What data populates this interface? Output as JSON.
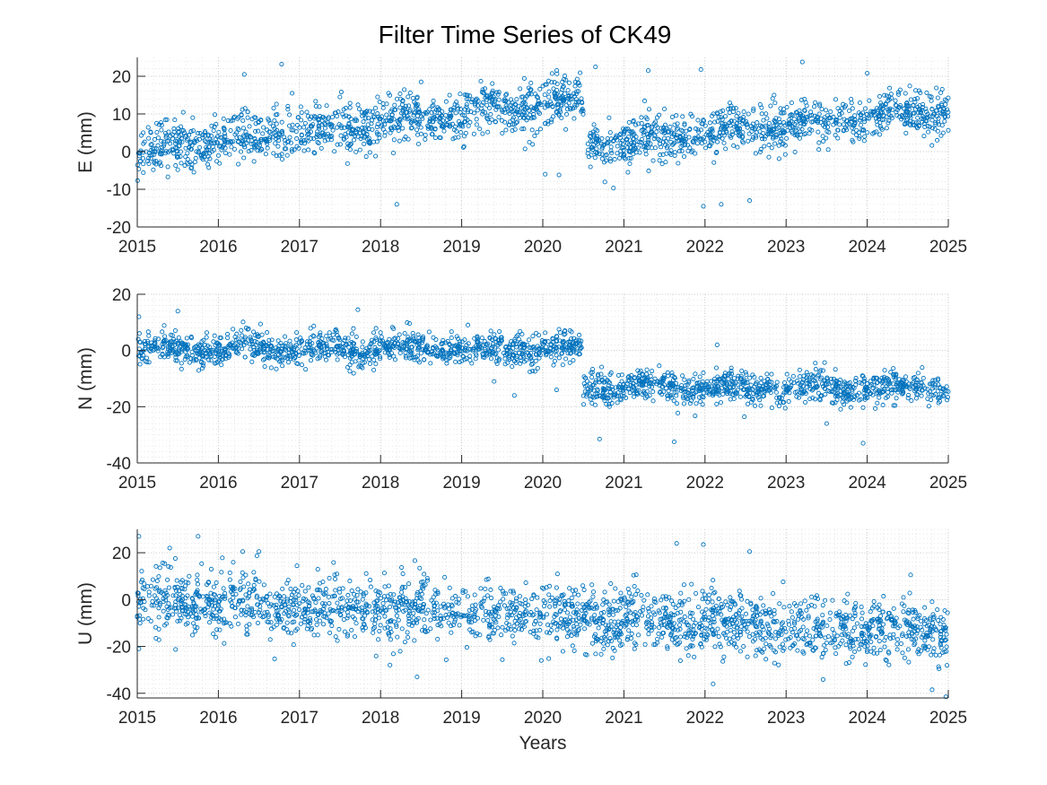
{
  "figure": {
    "title": "Filter Time Series of CK49",
    "marker_color": "#0072BD"
  },
  "chart_data": [
    {
      "type": "scatter",
      "ylabel": "E (mm)",
      "xlabel": "",
      "xlim": [
        2015,
        2025
      ],
      "ylim": [
        -20,
        25
      ],
      "xticks": [
        2015,
        2016,
        2017,
        2018,
        2019,
        2020,
        2021,
        2022,
        2023,
        2024,
        2025
      ],
      "yticks": [
        -20,
        -10,
        0,
        10,
        20
      ],
      "grid": true,
      "minor_grid": true,
      "segments": [
        {
          "x": [
            2015.0,
            2020.5
          ],
          "y_start": 0.5,
          "y_end": 13.5,
          "scatter_sd": 3.2
        },
        {
          "x": [
            2020.55,
            2025.0
          ],
          "y_start": 1.5,
          "y_end": 11.5,
          "scatter_sd": 3.0
        }
      ],
      "outliers": [
        {
          "x": 2016.32,
          "y": 20.5
        },
        {
          "x": 2016.78,
          "y": 23.2
        },
        {
          "x": 2018.2,
          "y": -14
        },
        {
          "x": 2020.03,
          "y": -6
        },
        {
          "x": 2020.2,
          "y": -6.2
        },
        {
          "x": 2020.65,
          "y": 22.5
        },
        {
          "x": 2021.3,
          "y": 21.5
        },
        {
          "x": 2021.95,
          "y": 21.8
        },
        {
          "x": 2021.98,
          "y": -14.5
        },
        {
          "x": 2022.2,
          "y": -14
        },
        {
          "x": 2022.55,
          "y": -13
        },
        {
          "x": 2023.2,
          "y": 23.8
        },
        {
          "x": 2024.0,
          "y": 20.8
        },
        {
          "x": 2018.5,
          "y": 18.5
        }
      ]
    },
    {
      "type": "scatter",
      "ylabel": "N (mm)",
      "xlabel": "",
      "xlim": [
        2015,
        2025
      ],
      "ylim": [
        -40,
        20
      ],
      "xticks": [
        2015,
        2016,
        2017,
        2018,
        2019,
        2020,
        2021,
        2022,
        2023,
        2024,
        2025
      ],
      "yticks": [
        -40,
        -20,
        0,
        20
      ],
      "grid": true,
      "minor_grid": true,
      "segments": [
        {
          "x": [
            2015.0,
            2020.5
          ],
          "y_start": 0.5,
          "y_end": 0.5,
          "scatter_sd": 2.8
        },
        {
          "x": [
            2020.5,
            2025.0
          ],
          "y_start": -13,
          "y_end": -13.5,
          "scatter_sd": 2.8
        }
      ],
      "outliers": [
        {
          "x": 2015.02,
          "y": 12
        },
        {
          "x": 2015.5,
          "y": 14
        },
        {
          "x": 2017.72,
          "y": 14.5
        },
        {
          "x": 2019.4,
          "y": -11
        },
        {
          "x": 2019.65,
          "y": -16
        },
        {
          "x": 2020.17,
          "y": -14
        },
        {
          "x": 2020.7,
          "y": -31.5
        },
        {
          "x": 2021.62,
          "y": -32.5
        },
        {
          "x": 2022.15,
          "y": 2
        },
        {
          "x": 2023.95,
          "y": -33
        },
        {
          "x": 2023.5,
          "y": -26
        }
      ]
    },
    {
      "type": "scatter",
      "ylabel": "U (mm)",
      "xlabel": "Years",
      "xlim": [
        2015,
        2025
      ],
      "ylim": [
        -42,
        30
      ],
      "xticks": [
        2015,
        2016,
        2017,
        2018,
        2019,
        2020,
        2021,
        2022,
        2023,
        2024,
        2025
      ],
      "yticks": [
        -40,
        -20,
        0,
        20
      ],
      "grid": true,
      "minor_grid": true,
      "segments": [
        {
          "x": [
            2015.0,
            2025.0
          ],
          "y_start": 0,
          "y_end": -14,
          "scatter_sd": 6.5
        }
      ],
      "outliers": [
        {
          "x": 2015.02,
          "y": 27
        },
        {
          "x": 2015.4,
          "y": 22
        },
        {
          "x": 2015.75,
          "y": 27
        },
        {
          "x": 2016.3,
          "y": 20.5
        },
        {
          "x": 2016.5,
          "y": 20.5
        },
        {
          "x": 2021.65,
          "y": 24
        },
        {
          "x": 2021.98,
          "y": 23.5
        },
        {
          "x": 2022.55,
          "y": 20.5
        },
        {
          "x": 2018.45,
          "y": -33
        },
        {
          "x": 2022.1,
          "y": -36
        },
        {
          "x": 2024.8,
          "y": -38.5
        },
        {
          "x": 2024.97,
          "y": -41.5
        },
        {
          "x": 2015.02,
          "y": -21
        }
      ]
    }
  ]
}
